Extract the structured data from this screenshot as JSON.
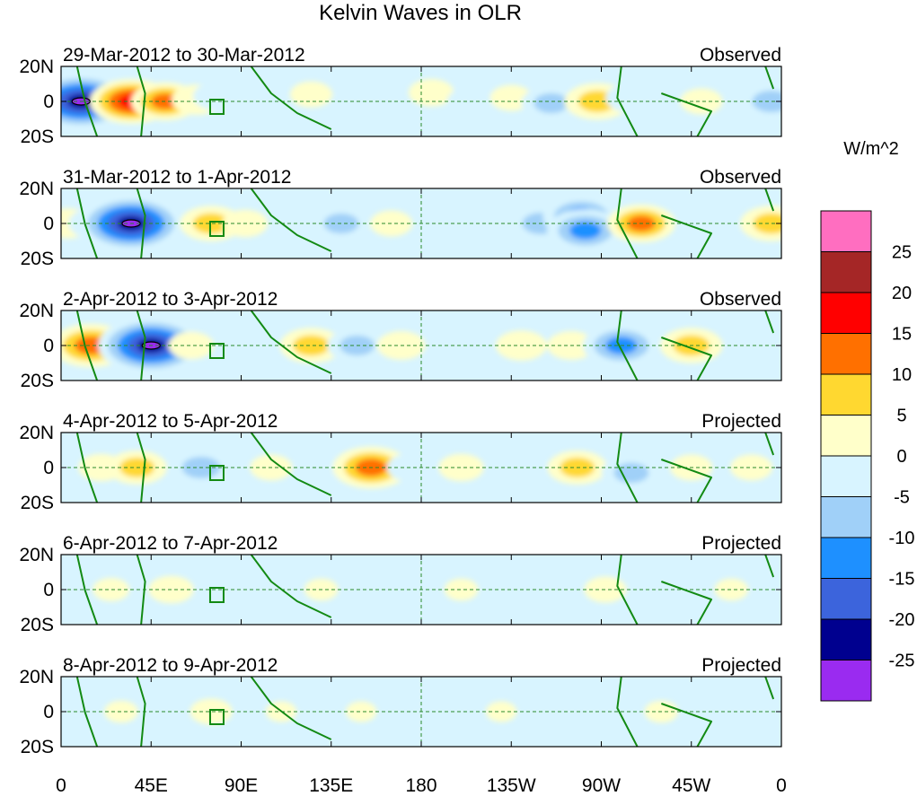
{
  "chart_data": {
    "type": "heatmap",
    "title": "Kelvin Waves in OLR",
    "units": "W/m^2",
    "colorbar": {
      "levels": [
        -25,
        -20,
        -15,
        -10,
        -5,
        0,
        5,
        10,
        15,
        20,
        25
      ],
      "level_labels": [
        "-25",
        "-20",
        "-15",
        "-10",
        "-5",
        "0",
        "5",
        "10",
        "15",
        "20",
        "25"
      ],
      "colors": [
        "#9a2bf0",
        "#00008f",
        "#3c64dc",
        "#1e90ff",
        "#a0d0f8",
        "#d8f4ff",
        "#ffffca",
        "#ffd830",
        "#ff7000",
        "#ff0000",
        "#a52626",
        "#ff6ec0"
      ]
    },
    "x_ticks": [
      "0",
      "45E",
      "90E",
      "135E",
      "180",
      "135W",
      "90W",
      "45W",
      "0"
    ],
    "x_tick_lons": [
      0,
      45,
      90,
      135,
      180,
      225,
      270,
      315,
      360
    ],
    "y_ticks": [
      "20N",
      "0",
      "20S"
    ],
    "y_tick_lats": [
      20,
      0,
      -20
    ],
    "panels": [
      {
        "period": "29-Mar-2012 to 30-Mar-2012",
        "kind": "Observed",
        "features": [
          {
            "lon": 10,
            "lat": 0,
            "value": -28
          },
          {
            "lon": 35,
            "lat": 0,
            "value": 20
          },
          {
            "lon": 52,
            "lat": 0,
            "value": 15
          },
          {
            "lon": 68,
            "lat": 1,
            "value": 9
          },
          {
            "lon": 78,
            "lat": 3,
            "value": -8
          },
          {
            "lon": 100,
            "lat": 0,
            "value": -9
          },
          {
            "lon": 125,
            "lat": 4,
            "value": 6
          },
          {
            "lon": 150,
            "lat": 0,
            "value": -7
          },
          {
            "lon": 185,
            "lat": 5,
            "value": 7
          },
          {
            "lon": 205,
            "lat": 0,
            "value": -8
          },
          {
            "lon": 225,
            "lat": 2,
            "value": 6
          },
          {
            "lon": 245,
            "lat": -1,
            "value": -12
          },
          {
            "lon": 268,
            "lat": 0,
            "value": 14
          },
          {
            "lon": 285,
            "lat": 2,
            "value": -9
          },
          {
            "lon": 320,
            "lat": 0,
            "value": 6
          },
          {
            "lon": 355,
            "lat": 0,
            "value": -14
          }
        ]
      },
      {
        "period": "31-Mar-2012 to 1-Apr-2012",
        "kind": "Observed",
        "features": [
          {
            "lon": 3,
            "lat": 0,
            "value": 9
          },
          {
            "lon": 18,
            "lat": 0,
            "value": -11
          },
          {
            "lon": 35,
            "lat": 0,
            "value": -28
          },
          {
            "lon": 75,
            "lat": 0,
            "value": 13
          },
          {
            "lon": 92,
            "lat": 0,
            "value": 7
          },
          {
            "lon": 118,
            "lat": 2,
            "value": -7
          },
          {
            "lon": 140,
            "lat": 0,
            "value": -12
          },
          {
            "lon": 165,
            "lat": 0,
            "value": 6
          },
          {
            "lon": 200,
            "lat": 2,
            "value": -6
          },
          {
            "lon": 240,
            "lat": 0,
            "value": -14
          },
          {
            "lon": 260,
            "lat": 4,
            "value": -18
          },
          {
            "lon": 262,
            "lat": -4,
            "value": -18
          },
          {
            "lon": 290,
            "lat": 0,
            "value": 15
          },
          {
            "lon": 330,
            "lat": -2,
            "value": -6
          },
          {
            "lon": 355,
            "lat": 0,
            "value": 13
          }
        ]
      },
      {
        "period": "2-Apr-2012 to 3-Apr-2012",
        "kind": "Observed",
        "features": [
          {
            "lon": 15,
            "lat": 0,
            "value": 19
          },
          {
            "lon": 45,
            "lat": 0,
            "value": -28
          },
          {
            "lon": 65,
            "lat": 0,
            "value": 7
          },
          {
            "lon": 95,
            "lat": 0,
            "value": -8
          },
          {
            "lon": 125,
            "lat": 0,
            "value": 13
          },
          {
            "lon": 148,
            "lat": 0,
            "value": -12
          },
          {
            "lon": 170,
            "lat": 0,
            "value": 8
          },
          {
            "lon": 195,
            "lat": -3,
            "value": -8
          },
          {
            "lon": 230,
            "lat": 0,
            "value": 9
          },
          {
            "lon": 255,
            "lat": 0,
            "value": 8
          },
          {
            "lon": 280,
            "lat": 0,
            "value": -18
          },
          {
            "lon": 315,
            "lat": 0,
            "value": 13
          },
          {
            "lon": 345,
            "lat": 0,
            "value": -6
          }
        ]
      },
      {
        "period": "4-Apr-2012 to 5-Apr-2012",
        "kind": "Projected",
        "features": [
          {
            "lon": 20,
            "lat": 0,
            "value": 7
          },
          {
            "lon": 38,
            "lat": 0,
            "value": 12
          },
          {
            "lon": 70,
            "lat": 0,
            "value": -14
          },
          {
            "lon": 105,
            "lat": 0,
            "value": 6
          },
          {
            "lon": 128,
            "lat": -3,
            "value": -9
          },
          {
            "lon": 155,
            "lat": 0,
            "value": 18
          },
          {
            "lon": 175,
            "lat": 0,
            "value": -8
          },
          {
            "lon": 200,
            "lat": 0,
            "value": 7
          },
          {
            "lon": 230,
            "lat": 0,
            "value": -7
          },
          {
            "lon": 258,
            "lat": 0,
            "value": 12
          },
          {
            "lon": 285,
            "lat": -3,
            "value": -12
          },
          {
            "lon": 315,
            "lat": 0,
            "value": 6
          },
          {
            "lon": 345,
            "lat": 0,
            "value": 6
          }
        ]
      },
      {
        "period": "6-Apr-2012 to 7-Apr-2012",
        "kind": "Projected",
        "features": [
          {
            "lon": 25,
            "lat": 0,
            "value": 4
          },
          {
            "lon": 55,
            "lat": 0,
            "value": 7
          },
          {
            "lon": 90,
            "lat": 0,
            "value": -5
          },
          {
            "lon": 130,
            "lat": 0,
            "value": 3
          },
          {
            "lon": 160,
            "lat": -2,
            "value": -4
          },
          {
            "lon": 200,
            "lat": 0,
            "value": 3
          },
          {
            "lon": 240,
            "lat": 0,
            "value": -5
          },
          {
            "lon": 272,
            "lat": 0,
            "value": 6
          },
          {
            "lon": 300,
            "lat": 0,
            "value": -5
          },
          {
            "lon": 335,
            "lat": 0,
            "value": 3
          }
        ]
      },
      {
        "period": "8-Apr-2012 to 9-Apr-2012",
        "kind": "Projected",
        "features": [
          {
            "lon": 30,
            "lat": 0,
            "value": 3
          },
          {
            "lon": 75,
            "lat": 0,
            "value": 6
          },
          {
            "lon": 110,
            "lat": 0,
            "value": 2
          },
          {
            "lon": 150,
            "lat": 0,
            "value": 2
          },
          {
            "lon": 180,
            "lat": 0,
            "value": -3
          },
          {
            "lon": 220,
            "lat": 0,
            "value": 2
          },
          {
            "lon": 265,
            "lat": 0,
            "value": -3
          },
          {
            "lon": 300,
            "lat": 0,
            "value": 3
          },
          {
            "lon": 340,
            "lat": 0,
            "value": -2
          }
        ]
      }
    ]
  }
}
